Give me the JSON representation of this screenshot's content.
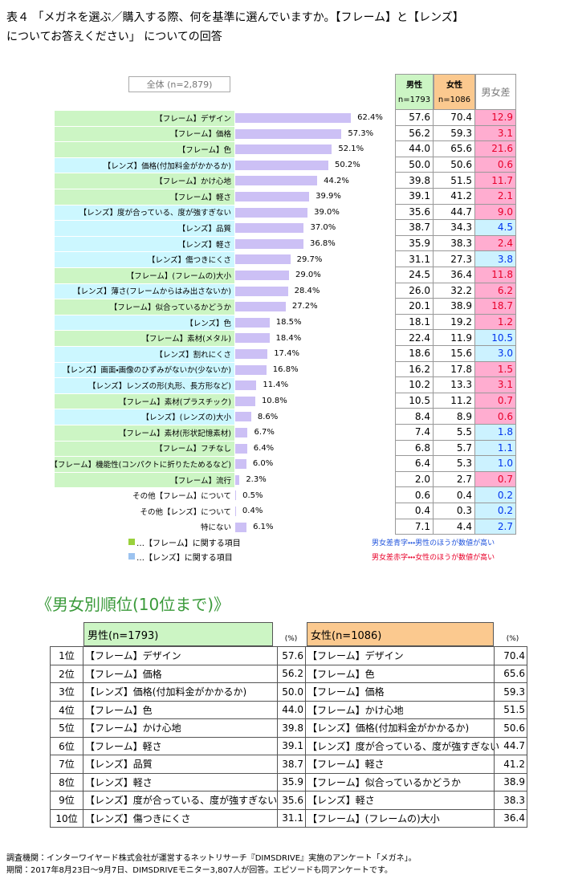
{
  "title": [
    "表４ 「メガネを選ぶ／購入する際、何を基準に選んでいますか。【フレーム】と【レンズ】",
    "についてお答えください」 についての回答"
  ],
  "chart_data": {
    "type": "bar",
    "orientation": "horizontal",
    "title": "全体 (n=2,879)",
    "color": "#ccc0f5",
    "categories": [
      "【フレーム】デザイン",
      "【フレーム】価格",
      "【フレーム】色",
      "【レンズ】価格(付加料金がかかるか)",
      "【フレーム】かけ心地",
      "【フレーム】軽さ",
      "【レンズ】度が合っている、度が強すぎない",
      "【レンズ】品質",
      "【レンズ】軽さ",
      "【レンズ】傷つきにくさ",
      "【フレーム】(フレームの)大小",
      "【レンズ】薄さ(フレームからはみ出さないか)",
      "【フレーム】似合っているかどうか",
      "【レンズ】色",
      "【フレーム】素材(メタル)",
      "【レンズ】割れにくさ",
      "【レンズ】画面・画像のひずみがないか(少ないか)",
      "【レンズ】レンズの形(丸形、長方形など)",
      "【フレーム】素材(プラスチック)",
      "【レンズ】(レンズの)大小",
      "【フレーム】素材(形状記憶素材)",
      "【フレーム】フチなし",
      "【フレーム】機能性(コンパクトに折りたためるなど)",
      "【フレーム】流行",
      "その他【フレーム】について",
      "その他【レンズ】について",
      "特にない"
    ],
    "values": [
      62.4,
      57.3,
      52.1,
      50.2,
      44.2,
      39.9,
      39.0,
      37.0,
      36.8,
      29.7,
      29.0,
      28.4,
      27.2,
      18.5,
      18.4,
      17.4,
      16.8,
      11.4,
      10.8,
      8.6,
      6.7,
      6.4,
      6.0,
      2.3,
      0.5,
      0.4,
      6.1
    ],
    "value_labels": [
      "62.4%",
      "57.3%",
      "52.1%",
      "50.2%",
      "44.2%",
      "39.9%",
      "39.0%",
      "37.0%",
      "36.8%",
      "29.7%",
      "29.0%",
      "28.4%",
      "27.2%",
      "18.5%",
      "18.4%",
      "17.4%",
      "16.8%",
      "11.4%",
      "10.8%",
      "8.6%",
      "6.7%",
      "6.4%",
      "6.0%",
      "2.3%",
      "0.5%",
      "0.4%",
      "6.1%"
    ],
    "label_colors": [
      "#ccf5c4",
      "#ccf5c4",
      "#ccf5c4",
      "#ccf7ff",
      "#ccf5c4",
      "#ccf5c4",
      "#ccf7ff",
      "#ccf7ff",
      "#ccf7ff",
      "#ccf7ff",
      "#ccf5c4",
      "#ccf7ff",
      "#ccf5c4",
      "#ccf7ff",
      "#ccf5c4",
      "#ccf7ff",
      "#ccf7ff",
      "#ccf7ff",
      "#ccf5c4",
      "#ccf7ff",
      "#ccf5c4",
      "#ccf5c4",
      "#ccf5c4",
      "#ccf5c4",
      "#ffffff",
      "#ffffff",
      "#ffffff"
    ]
  },
  "table": {
    "male_header": [
      "男性",
      "n=1793"
    ],
    "female_header": [
      "女性",
      "n=1086"
    ],
    "diff_header": "男女差",
    "male": [
      "57.6",
      "56.2",
      "44.0",
      "50.0",
      "39.8",
      "39.1",
      "35.6",
      "38.7",
      "35.9",
      "31.1",
      "24.5",
      "26.0",
      "20.1",
      "18.1",
      "22.4",
      "18.6",
      "16.2",
      "10.2",
      "10.5",
      "8.4",
      "7.4",
      "6.8",
      "6.4",
      "2.0",
      "0.6",
      "0.4",
      "7.1"
    ],
    "female": [
      "70.4",
      "59.3",
      "65.6",
      "50.6",
      "51.5",
      "41.2",
      "44.7",
      "34.3",
      "38.3",
      "27.3",
      "36.4",
      "32.2",
      "38.9",
      "19.2",
      "11.9",
      "15.6",
      "17.8",
      "13.3",
      "11.2",
      "8.9",
      "5.5",
      "5.7",
      "5.3",
      "2.7",
      "0.4",
      "0.3",
      "4.4"
    ],
    "diff": [
      "12.9",
      "3.1",
      "21.6",
      "0.6",
      "11.7",
      "2.1",
      "9.0",
      "4.5",
      "2.4",
      "3.8",
      "11.8",
      "6.2",
      "18.7",
      "1.2",
      "10.5",
      "3.0",
      "1.5",
      "3.1",
      "0.7",
      "0.6",
      "1.8",
      "1.1",
      "1.0",
      "0.7",
      "0.2",
      "0.2",
      "2.7"
    ],
    "diff_colors": [
      "red",
      "red",
      "red",
      "red",
      "red",
      "red",
      "red",
      "blue",
      "red",
      "blue",
      "red",
      "red",
      "red",
      "red",
      "blue",
      "blue",
      "red",
      "red",
      "red",
      "red",
      "blue",
      "blue",
      "blue",
      "red",
      "blue",
      "blue",
      "blue"
    ]
  },
  "legend": {
    "frame": "…【フレーム】に関する項目",
    "lens": "…【レンズ】に関する項目",
    "blue_note": "男女差青字・・・男性のほうが数値が高い",
    "red_note": "男女差赤字・・・女性のほうが数値が高い"
  },
  "ranking": {
    "title": "《男女別順位(10位まで)》",
    "male_header": "男性(n=1793)",
    "female_header": "女性(n=1086)",
    "unit": "(%)",
    "rows": [
      {
        "rank": "1位",
        "male": "【フレーム】デザイン",
        "male_value": "57.6",
        "female": "【フレーム】デザイン",
        "female_value": "70.4"
      },
      {
        "rank": "2位",
        "male": "【フレーム】価格",
        "male_value": "56.2",
        "female": "【フレーム】色",
        "female_value": "65.6"
      },
      {
        "rank": "3位",
        "male": "【レンズ】価格(付加料金がかかるか)",
        "male_value": "50.0",
        "female": "【フレーム】価格",
        "female_value": "59.3"
      },
      {
        "rank": "4位",
        "male": "【フレーム】色",
        "male_value": "44.0",
        "female": "【フレーム】かけ心地",
        "female_value": "51.5"
      },
      {
        "rank": "5位",
        "male": "【フレーム】かけ心地",
        "male_value": "39.8",
        "female": "【レンズ】価格(付加料金がかかるか)",
        "female_value": "50.6"
      },
      {
        "rank": "6位",
        "male": "【フレーム】軽さ",
        "male_value": "39.1",
        "female": "【レンズ】度が合っている、度が強すぎない",
        "female_value": "44.7"
      },
      {
        "rank": "7位",
        "male": "【レンズ】品質",
        "male_value": "38.7",
        "female": "【フレーム】軽さ",
        "female_value": "41.2"
      },
      {
        "rank": "8位",
        "male": "【レンズ】軽さ",
        "male_value": "35.9",
        "female": "【フレーム】似合っているかどうか",
        "female_value": "38.9"
      },
      {
        "rank": "9位",
        "male": "【レンズ】度が合っている、度が強すぎない",
        "male_value": "35.6",
        "female": "【レンズ】軽さ",
        "female_value": "38.3"
      },
      {
        "rank": "10位",
        "male": "【レンズ】傷つきにくさ",
        "male_value": "31.1",
        "female": "【フレーム】(フレームの)大小",
        "female_value": "36.4"
      }
    ]
  },
  "footer": [
    "調査機関：インターワイヤード株式会社が運営するネットリサーチ『DIMSDRIVE』実施のアンケート「メガネ」。",
    "期間：2017年8月23日～9月7日、DIMSDRIVEモニター3,807人が回答。エピソードも同アンケートです。"
  ]
}
